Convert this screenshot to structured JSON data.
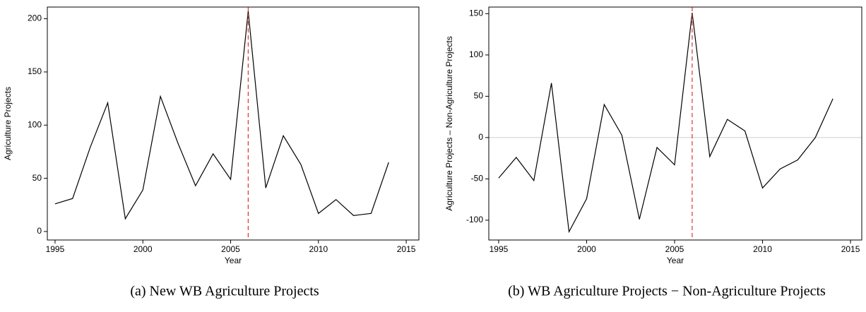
{
  "chart_data": [
    {
      "type": "line",
      "caption": "(a) New WB Agriculture Projects",
      "xlabel": "Year",
      "ylabel": "Agriculture Projects",
      "x": [
        1995,
        1996,
        1997,
        1998,
        1999,
        2000,
        2001,
        2002,
        2003,
        2004,
        2005,
        2006,
        2007,
        2008,
        2009,
        2010,
        2011,
        2012,
        2013,
        2014
      ],
      "series": [
        {
          "color": "#000000",
          "values": [
            26,
            31,
            79,
            121,
            12,
            39,
            127,
            83,
            43,
            73,
            49,
            207,
            41,
            90,
            63,
            17,
            30,
            15,
            17,
            65
          ]
        }
      ],
      "xlim": [
        1994.56,
        2015.72
      ],
      "xticks": [
        1995,
        2000,
        2005,
        2010,
        2015
      ],
      "ylim": [
        -8,
        211
      ],
      "yticks": [
        0,
        50,
        100,
        150,
        200
      ],
      "vline": {
        "x": 2006,
        "color": "#e03030"
      }
    },
    {
      "type": "line",
      "caption": "(b) WB Agriculture Projects − Non-Agriculture Projects",
      "xlabel": "Year",
      "ylabel": "Agriculture Projects – Non-Agriculture Projects",
      "x": [
        1995,
        1996,
        1997,
        1998,
        1999,
        2000,
        2001,
        2002,
        2003,
        2004,
        2005,
        2006,
        2007,
        2008,
        2009,
        2010,
        2011,
        2012,
        2013,
        2014
      ],
      "series": [
        {
          "color": "#000000",
          "values": [
            -49,
            -24,
            -52,
            66,
            -114,
            -74,
            40,
            3,
            -99,
            -12,
            -33,
            151,
            -23,
            22,
            8,
            -61,
            -38,
            -27,
            0,
            47
          ]
        }
      ],
      "xlim": [
        1994.44,
        2015.64
      ],
      "xticks": [
        1995,
        2000,
        2005,
        2010,
        2015
      ],
      "ylim": [
        -124,
        158
      ],
      "yticks": [
        -100,
        -50,
        0,
        50,
        100,
        150
      ],
      "hline": {
        "y": 0,
        "color": "#cccccc"
      },
      "vline": {
        "x": 2006,
        "color": "#e03030"
      }
    }
  ]
}
